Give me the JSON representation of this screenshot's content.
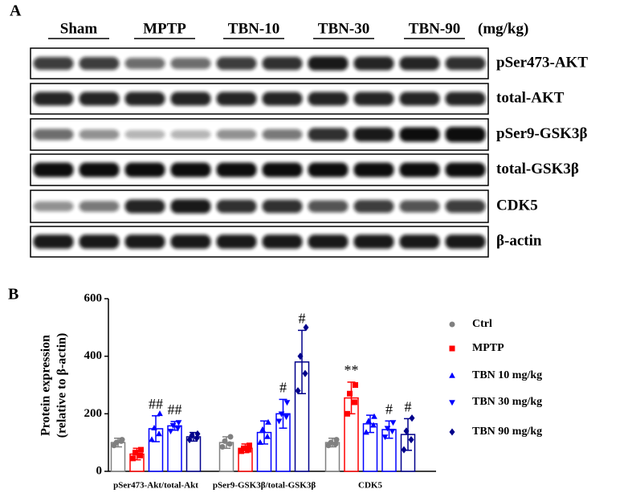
{
  "blot": {
    "label": "A",
    "groups": [
      "Sham",
      "MPTP",
      "TBN-10",
      "TBN-30",
      "TBN-90"
    ],
    "unit": "(mg/kg)",
    "rows": [
      "pSer473-AKT",
      "total-AKT",
      "pSer9-GSK3β",
      "total-GSK3β",
      "CDK5",
      "β-actin"
    ]
  },
  "chart_data": {
    "type": "bar",
    "panel_label": "B",
    "y_label": [
      "Protein expression",
      "(relative to β-actin)"
    ],
    "categories": [
      "pSer473-Akt/total-Akt",
      "pSer9-GSK3β/total-GSK3β",
      "CDK5"
    ],
    "ylim": [
      0,
      600
    ],
    "yticks": [
      0,
      200,
      400,
      600
    ],
    "series": [
      {
        "name": "Ctrl",
        "color": "#808080",
        "marker": "circle",
        "values": [
          100,
          100,
          100
        ],
        "errors": [
          15,
          20,
          15
        ],
        "points": [
          [
            90,
            105,
            100,
            110
          ],
          [
            85,
            95,
            105,
            120
          ],
          [
            90,
            95,
            100,
            110
          ]
        ],
        "annotations": [
          null,
          null,
          null
        ]
      },
      {
        "name": "MPTP",
        "color": "#ff0000",
        "marker": "square",
        "values": [
          60,
          80,
          255
        ],
        "errors": [
          20,
          15,
          55
        ],
        "points": [
          [
            45,
            55,
            65,
            75
          ],
          [
            70,
            75,
            80,
            90
          ],
          [
            200,
            240,
            270,
            300
          ]
        ],
        "annotations": [
          null,
          null,
          "**"
        ]
      },
      {
        "name": "TBN 10 mg/kg",
        "color": "#0000ff",
        "marker": "triangle-up",
        "values": [
          148,
          135,
          165
        ],
        "errors": [
          45,
          40,
          30
        ],
        "points": [
          [
            110,
            130,
            150,
            200
          ],
          [
            100,
            120,
            145,
            170
          ],
          [
            135,
            160,
            175,
            190
          ]
        ],
        "annotations": [
          "##",
          null,
          null
        ]
      },
      {
        "name": "TBN 30 mg/kg",
        "color": "#0000ff",
        "marker": "triangle-down",
        "values": [
          158,
          200,
          145
        ],
        "errors": [
          15,
          50,
          30
        ],
        "points": [
          [
            140,
            150,
            160,
            170
          ],
          [
            175,
            190,
            200,
            240
          ],
          [
            120,
            140,
            150,
            170
          ]
        ],
        "annotations": [
          "##",
          "#",
          "#"
        ]
      },
      {
        "name": "TBN 90 mg/kg",
        "color": "#00008b",
        "marker": "diamond",
        "values": [
          120,
          380,
          128
        ],
        "errors": [
          15,
          110,
          55
        ],
        "points": [
          [
            110,
            115,
            125,
            130
          ],
          [
            280,
            340,
            400,
            500
          ],
          [
            75,
            110,
            140,
            185
          ]
        ],
        "annotations": [
          null,
          "#",
          "#"
        ]
      }
    ]
  }
}
